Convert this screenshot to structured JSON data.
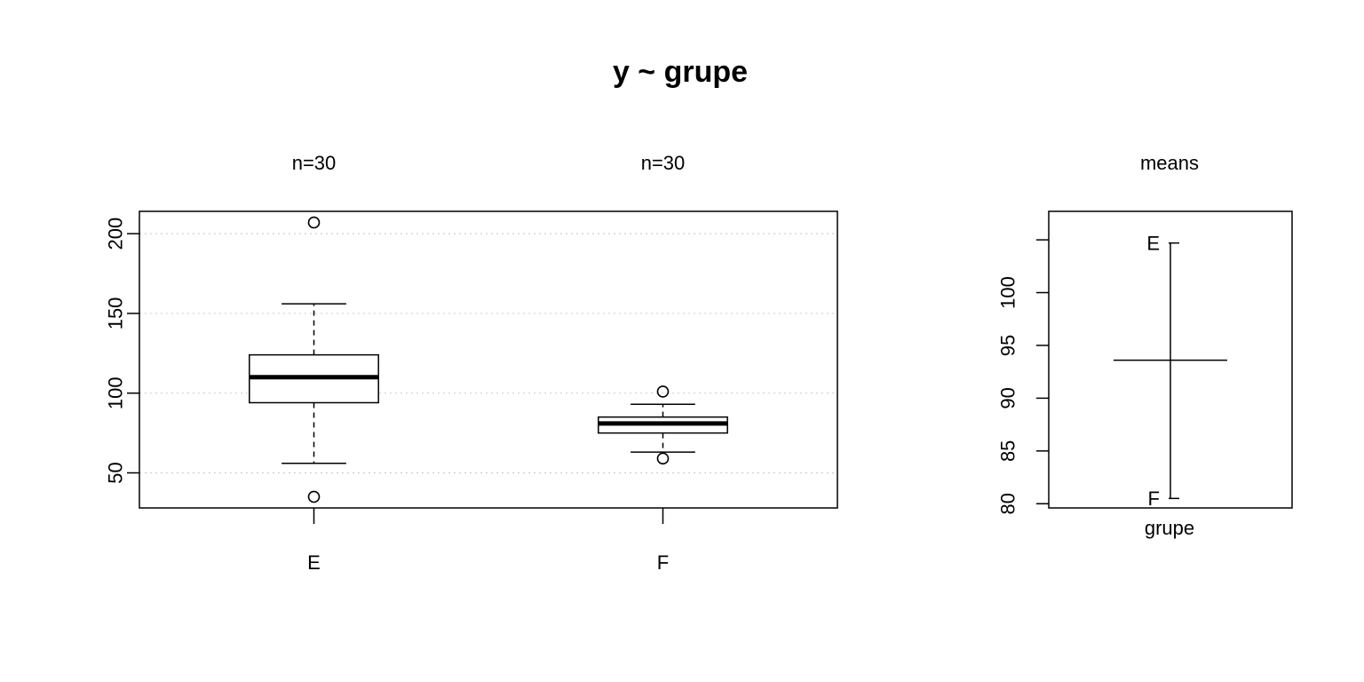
{
  "title": "y ~ grupe",
  "chart_data": [
    {
      "type": "box",
      "title": "y ~ grupe",
      "categories": [
        "E",
        "F"
      ],
      "counts": [
        "n=30",
        "n=30"
      ],
      "boxes": [
        {
          "name": "E",
          "whisker_low": 56,
          "q1": 94,
          "median": 110,
          "q3": 124,
          "whisker_high": 156,
          "outliers": [
            207,
            35
          ]
        },
        {
          "name": "F",
          "whisker_low": 63,
          "q1": 75,
          "median": 81,
          "q3": 85,
          "whisker_high": 93,
          "outliers": [
            101,
            59
          ]
        }
      ],
      "y_ticks": [
        "50",
        "100",
        "150",
        "200"
      ],
      "ylim": [
        28,
        214
      ],
      "grid": "horizontal dotted"
    },
    {
      "type": "means",
      "title": "means",
      "xlabel": "grupe",
      "points": [
        {
          "label": "E",
          "value": 104.7
        },
        {
          "label": "F",
          "value": 80.5
        }
      ],
      "grand_mean": 93.6,
      "y_ticks": [
        "80",
        "85",
        "90",
        "95",
        "100"
      ],
      "ylim": [
        79.6,
        107.7
      ]
    }
  ]
}
